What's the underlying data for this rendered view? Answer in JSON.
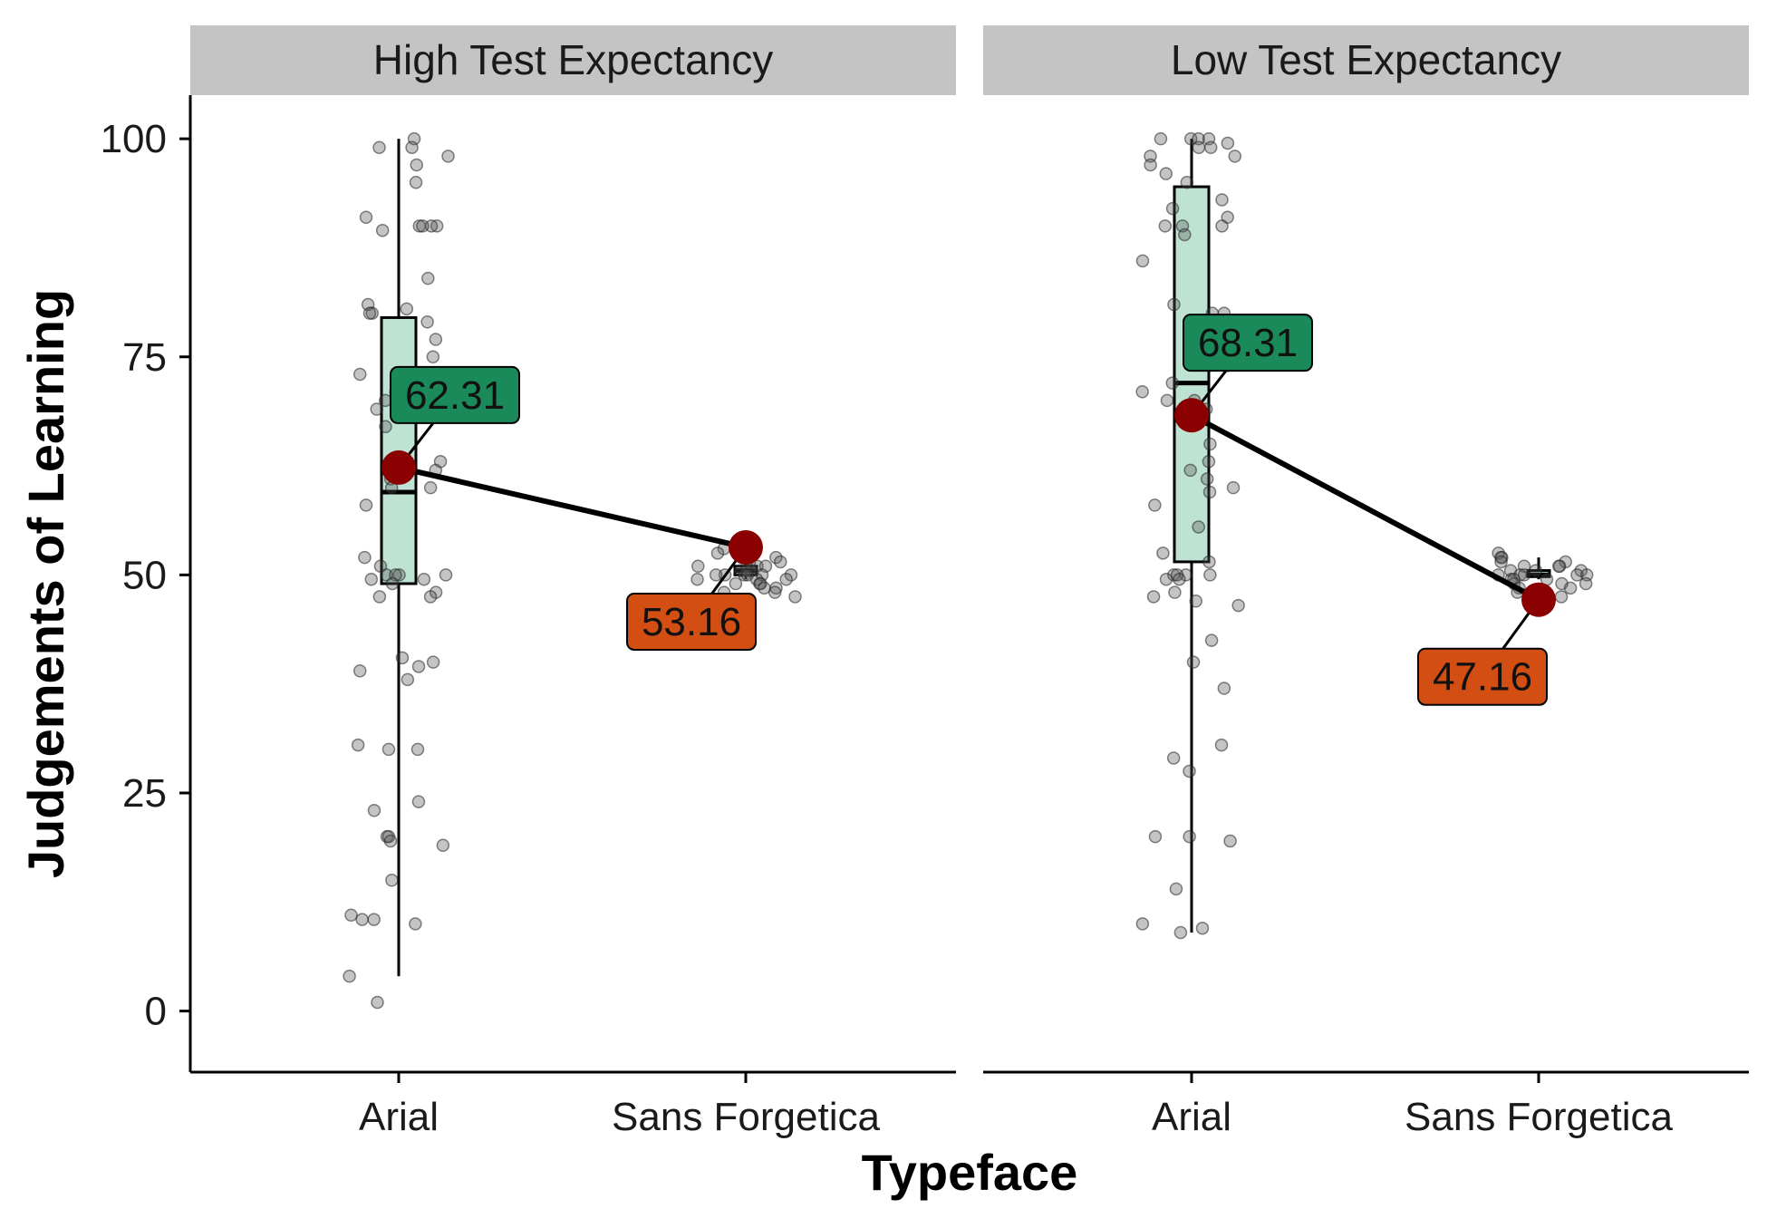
{
  "chart_data": {
    "type": "box-jitter-faceted",
    "xlabel": "Typeface",
    "ylabel": "Judgements of Learning",
    "ylim": [
      -7,
      105
    ],
    "yticks": [
      0,
      25,
      50,
      75,
      100
    ],
    "categories": [
      "Arial",
      "Sans Forgetica"
    ],
    "grid": false,
    "colors": {
      "box_fill": "#bfe3d3",
      "mean_point": "#8b0000",
      "label_arial": "#1b8a5a",
      "label_sf": "#d24e12",
      "strip_bg": "#c4c4c4",
      "jitter_point": "#555555"
    },
    "panels": [
      {
        "title": "High Test Expectancy",
        "means": [
          62.31,
          53.16
        ],
        "mean_labels": [
          "62.31",
          "53.16"
        ],
        "boxes": [
          {
            "category": "Arial",
            "min": 4,
            "q1": 49,
            "median": 59.5,
            "q3": 79.5,
            "max": 100
          },
          {
            "category": "Sans Forgetica",
            "min": 49.5,
            "q1": 50,
            "median": 50.5,
            "q3": 51,
            "max": 52
          }
        ],
        "jitter": [
          {
            "category": "Arial",
            "values": [
              100,
              99,
              99,
              98,
              97,
              95,
              91,
              90,
              90,
              90,
              90,
              89.5,
              84,
              81,
              80.5,
              80,
              80,
              79,
              77,
              75,
              73,
              71,
              70,
              70,
              69,
              67,
              63,
              62,
              61,
              60,
              60,
              58,
              52,
              51,
              50,
              50,
              50,
              50,
              49.5,
              49.5,
              49,
              48,
              47.5,
              47.5,
              40.5,
              40,
              39.5,
              39,
              38,
              30.5,
              30,
              30,
              24,
              23,
              20,
              20,
              19.5,
              19,
              15,
              11,
              10.5,
              10.5,
              10,
              4,
              1
            ]
          },
          {
            "category": "Sans Forgetica",
            "values": [
              53,
              53,
              52.5,
              52,
              52,
              51.5,
              51.5,
              51,
              51,
              51,
              50.5,
              50.5,
              50.5,
              50,
              50,
              50,
              50,
              50,
              50,
              49.5,
              49.5,
              49.5,
              49,
              49,
              49,
              48.5,
              48.5,
              48,
              48,
              47.5
            ]
          }
        ]
      },
      {
        "title": "Low Test Expectancy",
        "means": [
          68.31,
          47.16
        ],
        "mean_labels": [
          "68.31",
          "47.16"
        ],
        "boxes": [
          {
            "category": "Arial",
            "min": 9,
            "q1": 51.5,
            "median": 72,
            "q3": 94.5,
            "max": 100
          },
          {
            "category": "Sans Forgetica",
            "min": 49.5,
            "q1": 49.8,
            "median": 50,
            "q3": 50.5,
            "max": 52
          }
        ],
        "jitter": [
          {
            "category": "Arial",
            "values": [
              100,
              100,
              100,
              100,
              99.5,
              99,
              99,
              98,
              98,
              97,
              96,
              95,
              93,
              92,
              91,
              90,
              90,
              90,
              89,
              86,
              81,
              80,
              80,
              79,
              77,
              76,
              74,
              72,
              71,
              70,
              70,
              69,
              65,
              63,
              62,
              61,
              60,
              59.5,
              58,
              55.5,
              52.5,
              51.5,
              50,
              50,
              50,
              50,
              49.5,
              49.5,
              48,
              47.5,
              47,
              46.5,
              42.5,
              40,
              37,
              30.5,
              29,
              27.5,
              20,
              20,
              19.5,
              14,
              10,
              9.5,
              9
            ]
          },
          {
            "category": "Sans Forgetica",
            "values": [
              52.5,
              52,
              52,
              51.5,
              51.5,
              51,
              51,
              51,
              50.5,
              50.5,
              50.5,
              50,
              50,
              50,
              50,
              50,
              49.5,
              49.5,
              49.5,
              49,
              49,
              49,
              48.5,
              48.5,
              48,
              48,
              47.5,
              47.5
            ]
          }
        ]
      }
    ]
  }
}
